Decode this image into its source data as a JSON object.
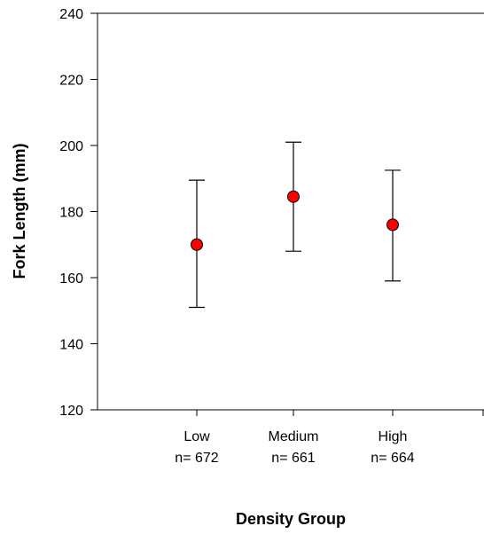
{
  "chart_data": {
    "type": "scatter",
    "title": "",
    "xlabel": "Density Group",
    "ylabel": "Fork Length (mm)",
    "ylim": [
      120,
      240
    ],
    "yticks": [
      120,
      140,
      160,
      180,
      200,
      220,
      240
    ],
    "grid": false,
    "categories": [
      {
        "label": "Low",
        "n_label": "n= 672"
      },
      {
        "label": "Medium",
        "n_label": "n= 661"
      },
      {
        "label": "High",
        "n_label": "n= 664"
      }
    ],
    "series": [
      {
        "values": [
          170,
          184.5,
          176
        ],
        "error_low": [
          151,
          168,
          159
        ],
        "error_high": [
          189.5,
          201,
          192.5
        ],
        "color": "#ff0000"
      }
    ]
  }
}
